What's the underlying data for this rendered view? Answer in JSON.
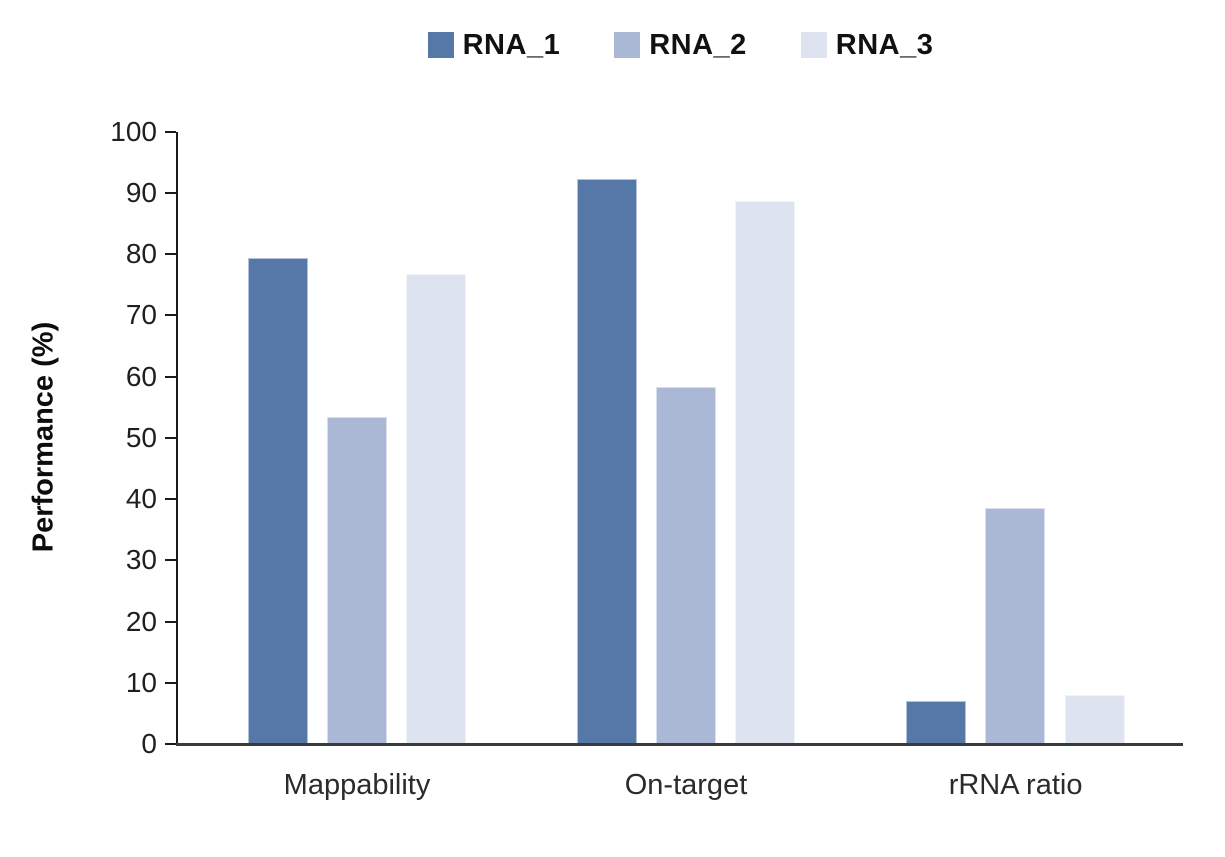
{
  "chart_data": {
    "type": "bar",
    "title": "",
    "categories": [
      "Mappability",
      "On-target",
      "rRNA ratio"
    ],
    "series": [
      {
        "name": "RNA_1",
        "color": "#5578a8",
        "values": [
          79.4,
          92.3,
          7.0
        ]
      },
      {
        "name": "RNA_2",
        "color": "#aab8d6",
        "values": [
          53.4,
          58.3,
          38.6
        ]
      },
      {
        "name": "RNA_3",
        "color": "#dde4f0",
        "values": [
          76.8,
          88.6,
          8.0
        ]
      }
    ],
    "xlabel": "",
    "ylabel": "Performance (%)",
    "ylim": [
      0,
      100
    ],
    "yticks": [
      0,
      10,
      20,
      30,
      40,
      50,
      60,
      70,
      80,
      90,
      100
    ],
    "legend_position": "top-center",
    "grid": false,
    "background": "#ffffff"
  }
}
